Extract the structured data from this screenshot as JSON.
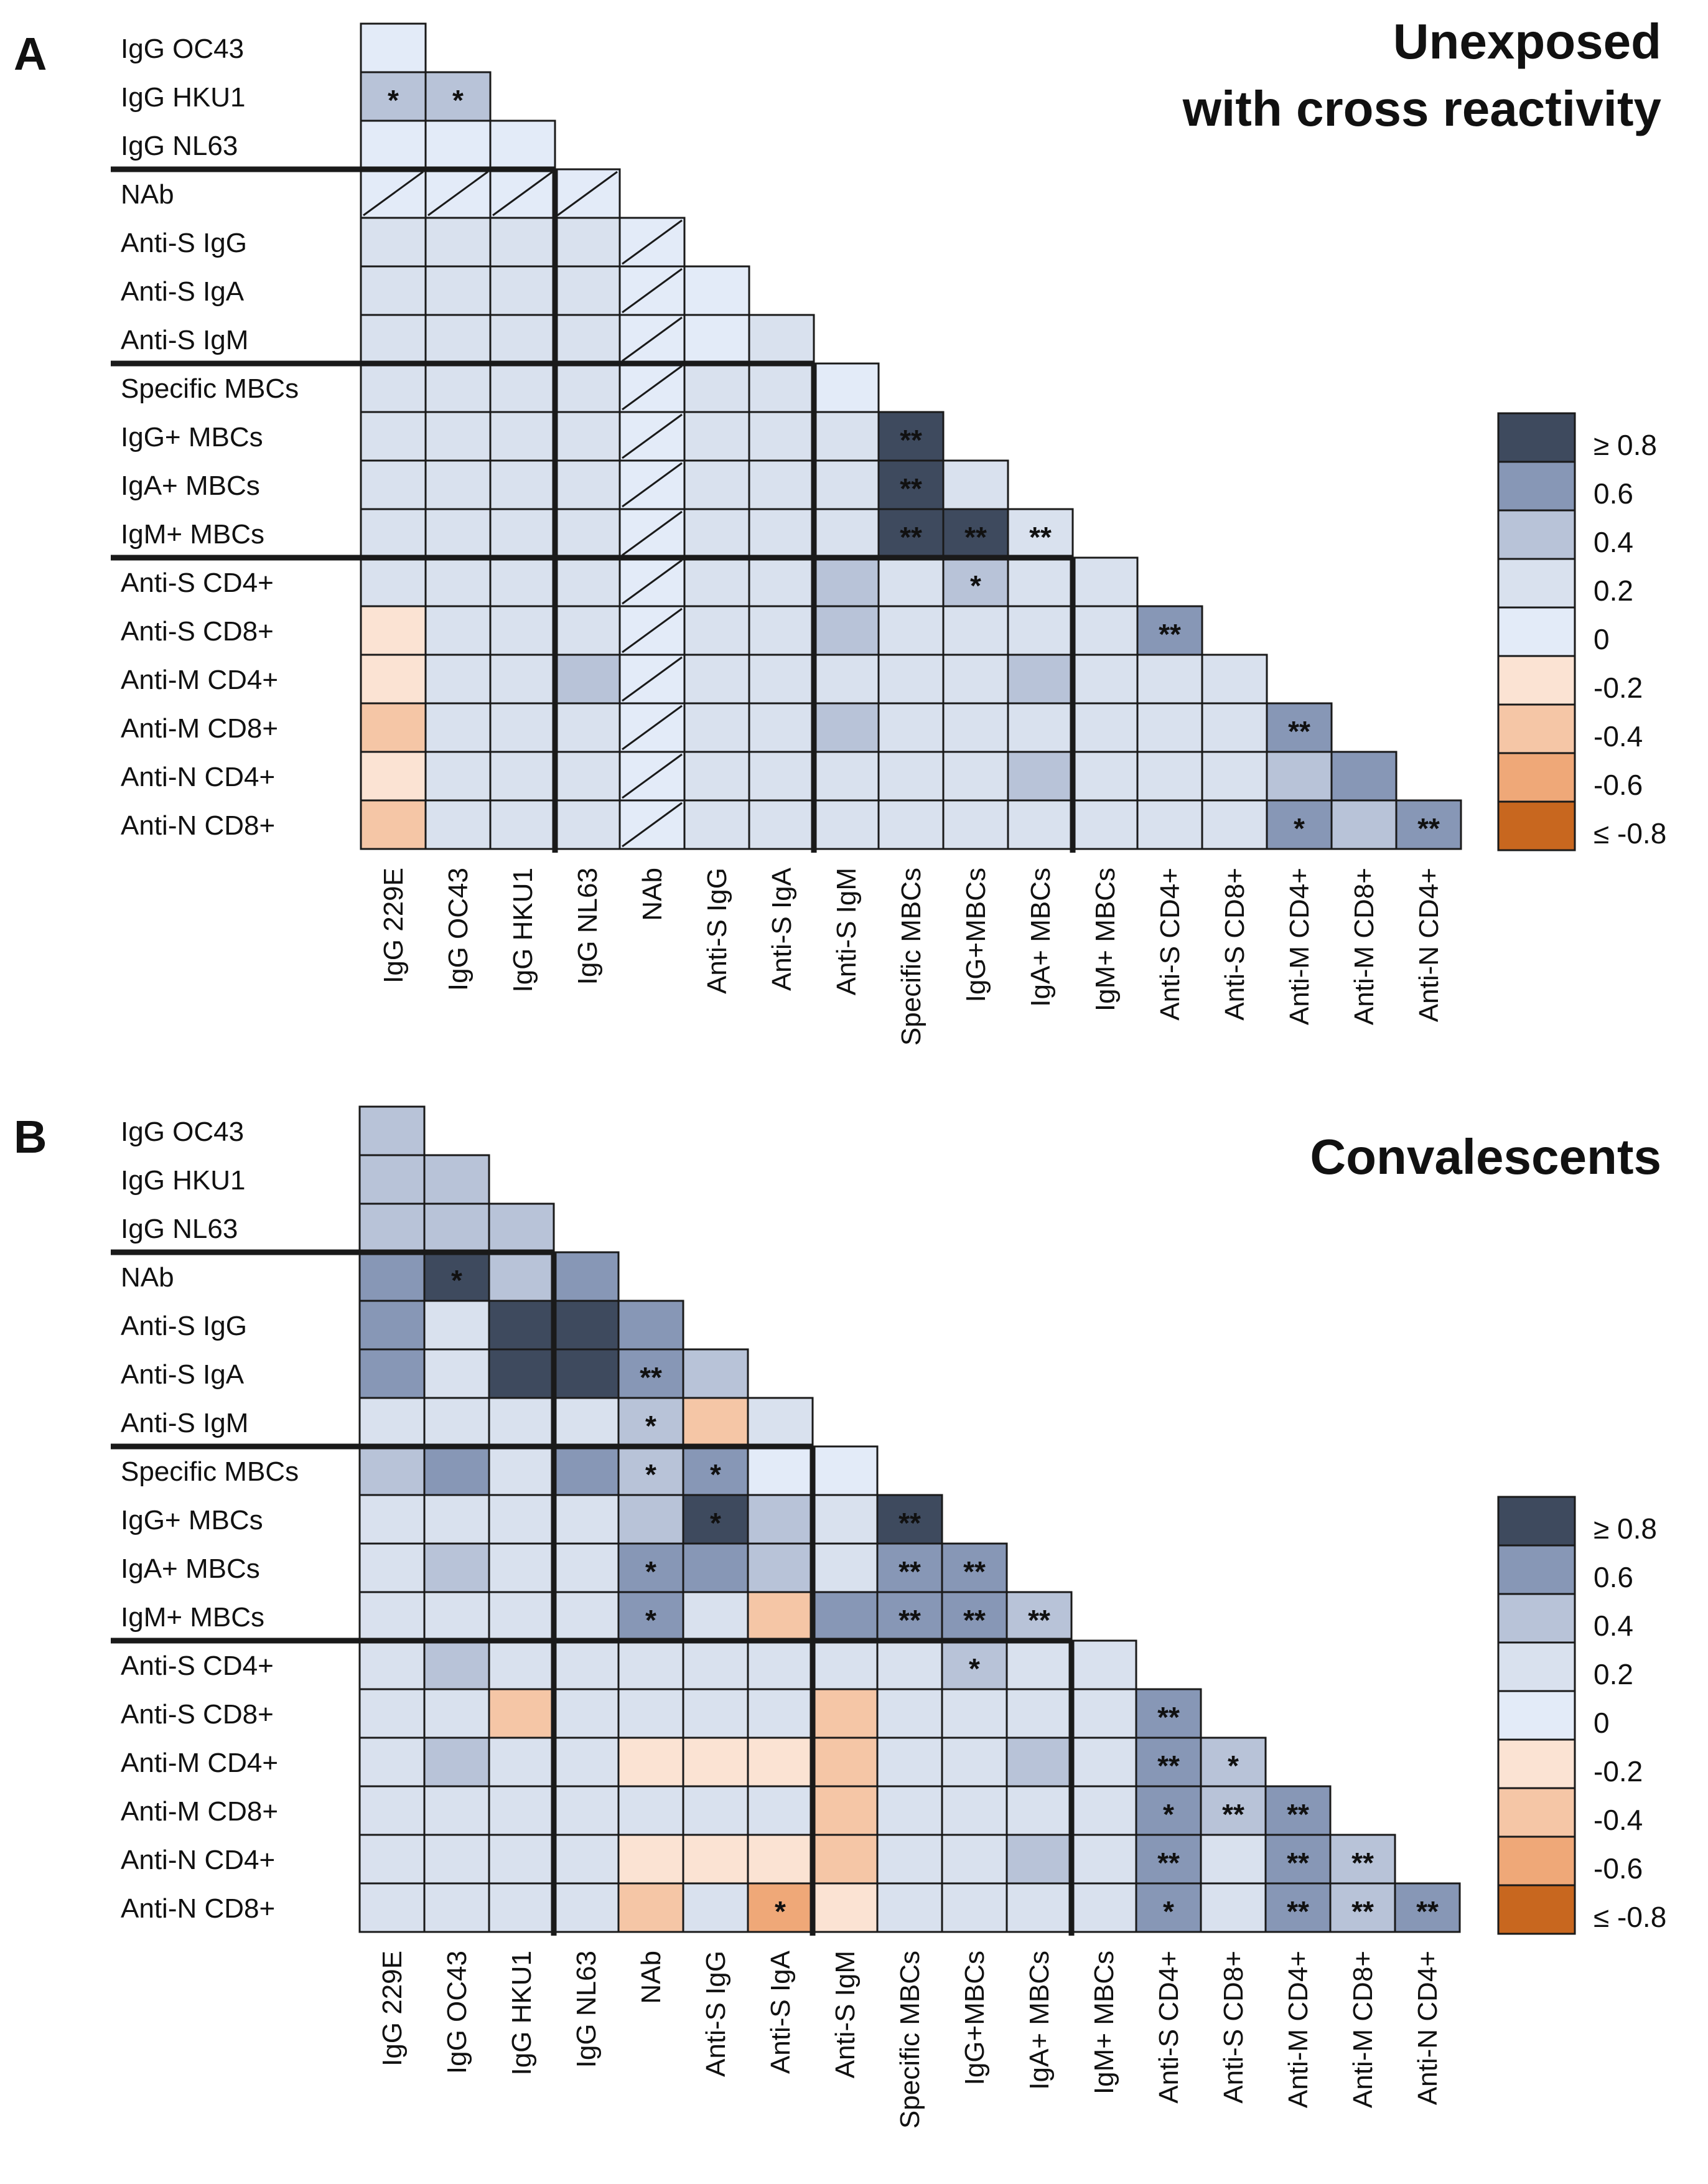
{
  "chart_data": [
    {
      "type": "heatmap",
      "panel_label": "A",
      "title_lines": [
        "Unexposed",
        "with cross reactivity"
      ],
      "row_labels": [
        "IgG OC43",
        "IgG HKU1",
        "IgG NL63",
        "NAb",
        "Anti-S IgG",
        "Anti-S IgA",
        "Anti-S IgM",
        "Specific MBCs",
        "IgG+ MBCs",
        "IgA+ MBCs",
        "IgM+ MBCs",
        "Anti-S CD4+",
        "Anti-S CD8+",
        "Anti-M CD4+",
        "Anti-M CD8+",
        "Anti-N CD4+",
        "Anti-N CD8+"
      ],
      "col_labels": [
        "IgG 229E",
        "IgG OC43",
        "IgG HKU1",
        "IgG NL63",
        "NAb",
        "Anti-S IgG",
        "Anti-S IgA",
        "Anti-S IgM",
        "Specific MBCs",
        "IgG+MBCs",
        "IgA+ MBCs",
        "IgM+ MBCs",
        "Anti-S CD4+",
        "Anti-S CD8+",
        "Anti-M CD4+",
        "Anti-M CD8+",
        "Anti-N CD4+"
      ],
      "value_scale": "r bin: 5 = ≥0.8, 4 = 0.6, 3 = 0.4, 2 = 0.2, 1 = 0, -1 = -0.2, -2 = -0.4, -3 = -0.6, -4 = ≤-0.8, null = not computed",
      "values": [
        [
          1
        ],
        [
          3,
          3
        ],
        [
          1,
          1,
          1
        ],
        [
          null,
          null,
          null,
          null
        ],
        [
          2,
          2,
          2,
          2,
          null
        ],
        [
          2,
          2,
          2,
          2,
          null,
          1
        ],
        [
          2,
          2,
          2,
          2,
          null,
          1,
          2
        ],
        [
          2,
          2,
          2,
          2,
          null,
          2,
          2,
          1
        ],
        [
          2,
          2,
          2,
          2,
          null,
          2,
          2,
          2,
          5
        ],
        [
          2,
          2,
          2,
          2,
          null,
          2,
          2,
          2,
          5,
          2
        ],
        [
          2,
          2,
          2,
          2,
          null,
          2,
          2,
          2,
          5,
          5,
          2
        ],
        [
          2,
          2,
          2,
          2,
          null,
          2,
          2,
          3,
          2,
          3,
          2,
          2
        ],
        [
          -1,
          2,
          2,
          2,
          null,
          2,
          2,
          3,
          2,
          2,
          2,
          2,
          4
        ],
        [
          -1,
          2,
          2,
          3,
          null,
          2,
          2,
          2,
          2,
          2,
          3,
          2,
          2,
          2
        ],
        [
          -2,
          2,
          2,
          2,
          null,
          2,
          2,
          3,
          2,
          2,
          2,
          2,
          2,
          2,
          4
        ],
        [
          -1,
          2,
          2,
          2,
          null,
          2,
          2,
          2,
          2,
          2,
          3,
          2,
          2,
          2,
          3,
          4
        ],
        [
          -2,
          2,
          2,
          2,
          null,
          2,
          2,
          2,
          2,
          2,
          2,
          2,
          2,
          2,
          4,
          3,
          4
        ]
      ],
      "significance": [
        [
          ""
        ],
        [
          "*",
          "*"
        ],
        [
          "",
          "",
          ""
        ],
        [
          "",
          "",
          "",
          ""
        ],
        [
          "",
          "",
          "",
          "",
          ""
        ],
        [
          "",
          "",
          "",
          "",
          "",
          ""
        ],
        [
          "",
          "",
          "",
          "",
          "",
          "",
          ""
        ],
        [
          "",
          "",
          "",
          "",
          "",
          "",
          "",
          ""
        ],
        [
          "",
          "",
          "",
          "",
          "",
          "",
          "",
          "",
          "**"
        ],
        [
          "",
          "",
          "",
          "",
          "",
          "",
          "",
          "",
          "**",
          ""
        ],
        [
          "",
          "",
          "",
          "",
          "",
          "",
          "",
          "",
          "**",
          "**",
          "**"
        ],
        [
          "",
          "",
          "",
          "",
          "",
          "",
          "",
          "",
          "",
          "*",
          "",
          ""
        ],
        [
          "",
          "",
          "",
          "",
          "",
          "",
          "",
          "",
          "",
          "",
          "",
          "",
          "**"
        ],
        [
          "",
          "",
          "",
          "",
          "",
          "",
          "",
          "",
          "",
          "",
          "",
          "",
          "",
          ""
        ],
        [
          "",
          "",
          "",
          "",
          "",
          "",
          "",
          "",
          "",
          "",
          "",
          "",
          "",
          "",
          "**"
        ],
        [
          "",
          "",
          "",
          "",
          "",
          "",
          "",
          "",
          "",
          "",
          "",
          "",
          "",
          "",
          "",
          ""
        ],
        [
          "",
          "",
          "",
          "",
          "",
          "",
          "",
          "",
          "",
          "",
          "",
          "",
          "",
          "",
          "*",
          "",
          "**"
        ]
      ],
      "group_breaks_after_row": [
        2,
        6,
        10
      ]
    },
    {
      "type": "heatmap",
      "panel_label": "B",
      "title_lines": [
        "Convalescents"
      ],
      "row_labels": [
        "IgG OC43",
        "IgG HKU1",
        "IgG NL63",
        "NAb",
        "Anti-S IgG",
        "Anti-S IgA",
        "Anti-S IgM",
        "Specific MBCs",
        "IgG+ MBCs",
        "IgA+ MBCs",
        "IgM+ MBCs",
        "Anti-S CD4+",
        "Anti-S CD8+",
        "Anti-M CD4+",
        "Anti-M CD8+",
        "Anti-N CD4+",
        "Anti-N CD8+"
      ],
      "col_labels": [
        "IgG 229E",
        "IgG OC43",
        "IgG HKU1",
        "IgG NL63",
        "NAb",
        "Anti-S IgG",
        "Anti-S IgA",
        "Anti-S IgM",
        "Specific MBCs",
        "IgG+MBCs",
        "IgA+ MBCs",
        "IgM+ MBCs",
        "Anti-S CD4+",
        "Anti-S CD8+",
        "Anti-M CD4+",
        "Anti-M CD8+",
        "Anti-N CD4+"
      ],
      "value_scale": "r bin: 5 = ≥0.8, 4 = 0.6, 3 = 0.4, 2 = 0.2, 1 = 0, -1 = -0.2, -2 = -0.4, -3 = -0.6, -4 = ≤-0.8, null = not computed",
      "values": [
        [
          3
        ],
        [
          3,
          3
        ],
        [
          3,
          3,
          3
        ],
        [
          4,
          5,
          3,
          4
        ],
        [
          4,
          2,
          5,
          5,
          4
        ],
        [
          4,
          2,
          5,
          5,
          4,
          3
        ],
        [
          2,
          2,
          2,
          2,
          3,
          -2,
          2
        ],
        [
          3,
          4,
          2,
          4,
          3,
          4,
          1,
          1
        ],
        [
          2,
          2,
          2,
          2,
          3,
          5,
          3,
          2,
          5
        ],
        [
          2,
          3,
          2,
          2,
          4,
          4,
          3,
          2,
          4,
          4
        ],
        [
          2,
          2,
          2,
          2,
          4,
          2,
          -2,
          4,
          4,
          4,
          3
        ],
        [
          2,
          3,
          2,
          2,
          2,
          2,
          2,
          2,
          2,
          3,
          2,
          2
        ],
        [
          2,
          2,
          -2,
          2,
          2,
          2,
          2,
          -2,
          2,
          2,
          2,
          2,
          4
        ],
        [
          2,
          3,
          2,
          2,
          -1,
          -1,
          -1,
          -2,
          2,
          2,
          3,
          2,
          4,
          3
        ],
        [
          2,
          2,
          2,
          2,
          2,
          2,
          2,
          -2,
          2,
          2,
          2,
          2,
          4,
          3,
          4
        ],
        [
          2,
          2,
          2,
          2,
          -1,
          -1,
          -1,
          -2,
          2,
          2,
          3,
          2,
          4,
          2,
          4,
          3
        ],
        [
          2,
          2,
          2,
          2,
          -2,
          2,
          -3,
          -1,
          2,
          2,
          2,
          2,
          4,
          2,
          4,
          3,
          4
        ]
      ],
      "significance": [
        [
          ""
        ],
        [
          "",
          ""
        ],
        [
          "",
          "",
          ""
        ],
        [
          "",
          "*",
          "",
          ""
        ],
        [
          "",
          "",
          "",
          "",
          ""
        ],
        [
          "",
          "",
          "",
          "",
          "**",
          ""
        ],
        [
          "",
          "",
          "",
          "",
          "*",
          "",
          ""
        ],
        [
          "",
          "",
          "",
          "",
          "*",
          "*",
          "",
          ""
        ],
        [
          "",
          "",
          "",
          "",
          "",
          "*",
          "",
          "",
          "**"
        ],
        [
          "",
          "",
          "",
          "",
          "*",
          "",
          "",
          "",
          "**",
          "**"
        ],
        [
          "",
          "",
          "",
          "",
          "*",
          "",
          "",
          "",
          "**",
          "**",
          "**"
        ],
        [
          "",
          "",
          "",
          "",
          "",
          "",
          "",
          "",
          "",
          "*",
          "",
          ""
        ],
        [
          "",
          "",
          "",
          "",
          "",
          "",
          "",
          "",
          "",
          "",
          "",
          "",
          "**"
        ],
        [
          "",
          "",
          "",
          "",
          "",
          "",
          "",
          "",
          "",
          "",
          "",
          "",
          "**",
          "*"
        ],
        [
          "",
          "",
          "",
          "",
          "",
          "",
          "",
          "",
          "",
          "",
          "",
          "",
          "*",
          "**",
          "**"
        ],
        [
          "",
          "",
          "",
          "",
          "",
          "",
          "",
          "",
          "",
          "",
          "",
          "",
          "**",
          "",
          "**",
          "**"
        ],
        [
          "",
          "",
          "",
          "",
          "",
          "",
          "*",
          "",
          "",
          "",
          "",
          "",
          "*",
          "",
          "**",
          "**",
          "**"
        ]
      ],
      "group_breaks_after_row": [
        2,
        6,
        10
      ]
    }
  ],
  "legend": {
    "labels": [
      "≥ 0.8",
      "0.6",
      "0.4",
      "0.2",
      "0",
      "-0.2",
      "-0.4",
      "-0.6",
      "≤ -0.8"
    ],
    "bins": [
      5,
      4,
      3,
      2,
      1,
      -1,
      -2,
      -3,
      -4
    ]
  },
  "colors": {
    "5": "#3e4a5e",
    "4": "#8797b6",
    "3": "#b8c3d8",
    "2": "#d9e1ee",
    "1": "#e3ebf8",
    "0": "#ffffff",
    "-1": "#fbe3d3",
    "-2": "#f5c6a6",
    "-3": "#efa878",
    "-4": "#c8671f",
    "grid": "#1a1a1a",
    "text": "#111111"
  }
}
